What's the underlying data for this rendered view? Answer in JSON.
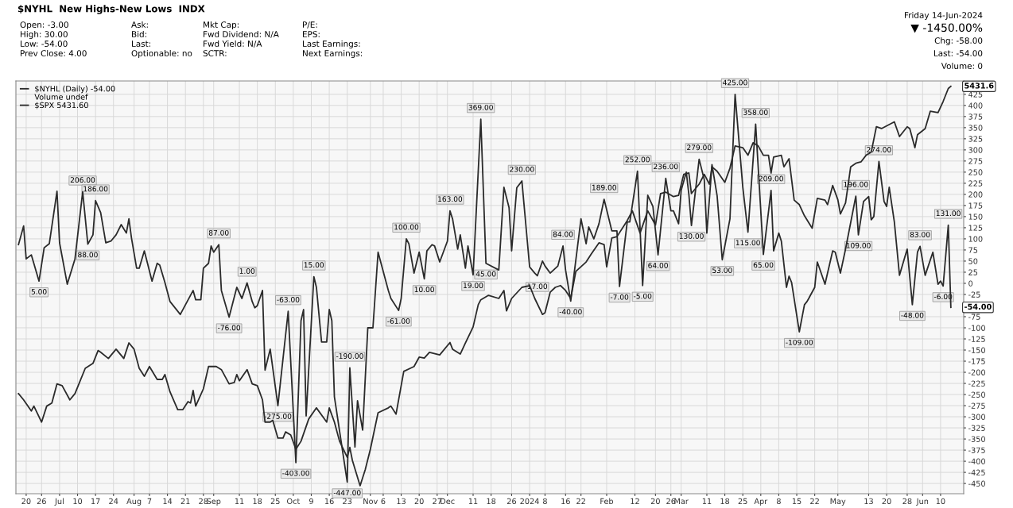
{
  "chart_data": {
    "type": "line",
    "title": "$NYHL  New Highs-New Lows  INDX",
    "annotations": [
      "Open: -3.00",
      "High: 30.00",
      "Low: -54.00",
      "Prev Close: 4.00",
      "Ask:",
      "Bid:",
      "Last:",
      "Optionable: no",
      "Mkt Cap:",
      "Fwd Dividend: N/A",
      "Fwd Yield: N/A",
      "SCTR:",
      "P/E:",
      "EPS:",
      "Last Earnings:",
      "Next Earnings:",
      "Friday 14-Jun-2024",
      "▼ -1450.00%",
      "Chg: -58.00",
      "Last: -54.00",
      "Volume: 0",
      "Volume undef",
      {
        "text": "-54.00",
        "x": "2024-06-14",
        "y": -54
      },
      {
        "text": "5431.6",
        "x": "2024-06-14",
        "y": 443
      }
    ],
    "xlim": [
      "2023-06-16",
      "2024-06-19"
    ],
    "ylim": [
      -473,
      455
    ],
    "xticks": [
      {
        "value": "2023-06-20",
        "label": "20"
      },
      {
        "value": "2023-06-26",
        "label": "26"
      },
      {
        "value": "2023-07-03",
        "label": "Jul"
      },
      {
        "value": "2023-07-10",
        "label": "10"
      },
      {
        "value": "2023-07-17",
        "label": "17"
      },
      {
        "value": "2023-07-24",
        "label": "24"
      },
      {
        "value": "2023-08-01",
        "label": "Aug"
      },
      {
        "value": "2023-08-07",
        "label": "7"
      },
      {
        "value": "2023-08-14",
        "label": "14"
      },
      {
        "value": "2023-08-21",
        "label": "21"
      },
      {
        "value": "2023-08-28",
        "label": "28"
      },
      {
        "value": "2023-09-01",
        "label": "Sep"
      },
      {
        "value": "2023-09-11",
        "label": "11"
      },
      {
        "value": "2023-09-18",
        "label": "18"
      },
      {
        "value": "2023-09-25",
        "label": "25"
      },
      {
        "value": "2023-10-02",
        "label": "Oct"
      },
      {
        "value": "2023-10-09",
        "label": "9"
      },
      {
        "value": "2023-10-16",
        "label": "16"
      },
      {
        "value": "2023-10-23",
        "label": "23"
      },
      {
        "value": "2023-11-01",
        "label": "Nov"
      },
      {
        "value": "2023-11-06",
        "label": "6"
      },
      {
        "value": "2023-11-13",
        "label": "13"
      },
      {
        "value": "2023-11-20",
        "label": "20"
      },
      {
        "value": "2023-11-27",
        "label": "27"
      },
      {
        "value": "2023-12-01",
        "label": "Dec"
      },
      {
        "value": "2023-12-11",
        "label": "11"
      },
      {
        "value": "2023-12-18",
        "label": "18"
      },
      {
        "value": "2023-12-26",
        "label": "26"
      },
      {
        "value": "2024-01-02",
        "label": "2024"
      },
      {
        "value": "2024-01-08",
        "label": "8"
      },
      {
        "value": "2024-01-16",
        "label": "16"
      },
      {
        "value": "2024-01-22",
        "label": "22"
      },
      {
        "value": "2024-02-01",
        "label": "Feb"
      },
      {
        "value": "2024-02-12",
        "label": "12"
      },
      {
        "value": "2024-02-20",
        "label": "20"
      },
      {
        "value": "2024-02-26",
        "label": "26"
      },
      {
        "value": "2024-03-01",
        "label": "Mar"
      },
      {
        "value": "2024-03-11",
        "label": "11"
      },
      {
        "value": "2024-03-18",
        "label": "18"
      },
      {
        "value": "2024-03-25",
        "label": "25"
      },
      {
        "value": "2024-04-01",
        "label": "Apr"
      },
      {
        "value": "2024-04-08",
        "label": "8"
      },
      {
        "value": "2024-04-15",
        "label": "15"
      },
      {
        "value": "2024-04-22",
        "label": "22"
      },
      {
        "value": "2024-05-01",
        "label": "May"
      },
      {
        "value": "2024-05-13",
        "label": "13"
      },
      {
        "value": "2024-05-20",
        "label": "20"
      },
      {
        "value": "2024-05-28",
        "label": "28"
      },
      {
        "value": "2024-06-03",
        "label": "Jun"
      },
      {
        "value": "2024-06-10",
        "label": "10"
      }
    ],
    "yticks": [
      425,
      400,
      375,
      350,
      325,
      300,
      275,
      250,
      225,
      200,
      175,
      150,
      125,
      100,
      75,
      50,
      25,
      0,
      -25,
      -75,
      -100,
      -125,
      -150,
      -175,
      -200,
      -225,
      -250,
      -275,
      -300,
      -325,
      -350,
      -375,
      -400,
      -425,
      -450
    ],
    "grid": true,
    "legend": "top left",
    "series": [
      {
        "name": "$NYHL (Daily) -54.00",
        "color": "#2b2b2b",
        "x": [
          "2023-06-17",
          "2023-06-19",
          "2023-06-20",
          "2023-06-22",
          "2023-06-25",
          "2023-06-27",
          "2023-06-29",
          "2023-07-02",
          "2023-07-03",
          "2023-07-06",
          "2023-07-09",
          "2023-07-12",
          "2023-07-14",
          "2023-07-16",
          "2023-07-17",
          "2023-07-19",
          "2023-07-21",
          "2023-07-23",
          "2023-07-25",
          "2023-07-27",
          "2023-07-29",
          "2023-07-30",
          "2023-07-31",
          "2023-08-02",
          "2023-08-03",
          "2023-08-05",
          "2023-08-08",
          "2023-08-10",
          "2023-08-11",
          "2023-08-13",
          "2023-08-15",
          "2023-08-19",
          "2023-08-24",
          "2023-08-25",
          "2023-08-27",
          "2023-08-28",
          "2023-08-30",
          "2023-08-31",
          "2023-09-01",
          "2023-09-03",
          "2023-09-04",
          "2023-09-07",
          "2023-09-10",
          "2023-09-12",
          "2023-09-14",
          "2023-09-16",
          "2023-09-17",
          "2023-09-18",
          "2023-09-20",
          "2023-09-21",
          "2023-09-23",
          "2023-09-26",
          "2023-09-30",
          "2023-10-03",
          "2023-10-05",
          "2023-10-06",
          "2023-10-07",
          "2023-10-10",
          "2023-10-11",
          "2023-10-13",
          "2023-10-15",
          "2023-10-16",
          "2023-10-17",
          "2023-10-18",
          "2023-10-23",
          "2023-10-24",
          "2023-10-26",
          "2023-10-27",
          "2023-10-29",
          "2023-10-31",
          "2023-11-02",
          "2023-11-04",
          "2023-11-08",
          "2023-11-09",
          "2023-11-12",
          "2023-11-13",
          "2023-11-15",
          "2023-11-16",
          "2023-11-18",
          "2023-11-20",
          "2023-11-22",
          "2023-11-23",
          "2023-11-25",
          "2023-11-26",
          "2023-11-28",
          "2023-12-01",
          "2023-12-02",
          "2023-12-03",
          "2023-12-05",
          "2023-12-06",
          "2023-12-08",
          "2023-12-09",
          "2023-12-11",
          "2023-12-14",
          "2023-12-16",
          "2023-12-21",
          "2023-12-23",
          "2023-12-25",
          "2023-12-26",
          "2023-12-28",
          "2023-12-30",
          "2024-01-02",
          "2024-01-04",
          "2024-01-05",
          "2024-01-07",
          "2024-01-08",
          "2024-01-10",
          "2024-01-13",
          "2024-01-15",
          "2024-01-16",
          "2024-01-18",
          "2024-01-22",
          "2024-01-24",
          "2024-01-25",
          "2024-01-27",
          "2024-01-29",
          "2024-01-31",
          "2024-02-03",
          "2024-02-05",
          "2024-02-06",
          "2024-02-09",
          "2024-02-10",
          "2024-02-13",
          "2024-02-15",
          "2024-02-17",
          "2024-02-19",
          "2024-02-21",
          "2024-02-24",
          "2024-02-26",
          "2024-02-27",
          "2024-02-29",
          "2024-03-01",
          "2024-03-03",
          "2024-03-04",
          "2024-03-05",
          "2024-03-08",
          "2024-03-10",
          "2024-03-11",
          "2024-03-13",
          "2024-03-15",
          "2024-03-17",
          "2024-03-20",
          "2024-03-22",
          "2024-03-25",
          "2024-03-27",
          "2024-03-30",
          "2024-04-02",
          "2024-04-05",
          "2024-04-06",
          "2024-04-08",
          "2024-04-09",
          "2024-04-11",
          "2024-04-12",
          "2024-04-13",
          "2024-04-16",
          "2024-04-18",
          "2024-04-19",
          "2024-04-22",
          "2024-04-23",
          "2024-04-26",
          "2024-04-29",
          "2024-04-30",
          "2024-05-02",
          "2024-05-04",
          "2024-05-08",
          "2024-05-09",
          "2024-05-11",
          "2024-05-13",
          "2024-05-14",
          "2024-05-15",
          "2024-05-17",
          "2024-05-19",
          "2024-05-20",
          "2024-05-21",
          "2024-05-23",
          "2024-05-25",
          "2024-05-28",
          "2024-05-30",
          "2024-06-01",
          "2024-06-02",
          "2024-06-04",
          "2024-06-07",
          "2024-06-09",
          "2024-06-10",
          "2024-06-11",
          "2024-06-13",
          "2024-06-14"
        ],
        "values": [
          87,
          129,
          55,
          64,
          5,
          80,
          89,
          207,
          91,
          -2,
          55,
          206,
          88,
          109,
          186,
          159,
          91,
          95,
          109,
          132,
          113,
          145,
          102,
          34,
          34,
          73,
          5,
          45,
          41,
          2,
          -41,
          -70,
          -16,
          -37,
          -37,
          34,
          45,
          84,
          70,
          87,
          -16,
          -76,
          -9,
          -34,
          1,
          -41,
          -55,
          -50,
          -16,
          -195,
          -148,
          -275,
          -63,
          -403,
          -84,
          -59,
          -298,
          15,
          -9,
          -132,
          -132,
          -59,
          -84,
          -255,
          -447,
          -190,
          -368,
          -264,
          -330,
          -100,
          -100,
          70,
          -16,
          -34,
          -61,
          -34,
          100,
          89,
          23,
          70,
          10,
          73,
          87,
          84,
          48,
          95,
          163,
          145,
          77,
          109,
          34,
          84,
          19,
          369,
          45,
          30,
          216,
          170,
          73,
          215,
          230,
          37,
          23,
          17,
          50,
          39,
          23,
          39,
          84,
          30,
          -40,
          145,
          89,
          127,
          100,
          134,
          189,
          118,
          118,
          -7,
          138,
          138,
          252,
          -5,
          198,
          173,
          64,
          236,
          163,
          163,
          134,
          209,
          250,
          200,
          130,
          279,
          233,
          113,
          267,
          197,
          53,
          145,
          425,
          216,
          115,
          358,
          65,
          209,
          73,
          113,
          95,
          -9,
          16,
          2,
          -109,
          -48,
          -41,
          -9,
          48,
          -2,
          73,
          70,
          23,
          77,
          196,
          109,
          184,
          195,
          143,
          150,
          274,
          184,
          173,
          216,
          138,
          18,
          77,
          -48,
          70,
          83,
          18,
          70,
          -2,
          5,
          -6,
          131,
          -54
        ],
        "value_labels": [
          null,
          null,
          null,
          null,
          "5.00",
          null,
          null,
          null,
          null,
          null,
          null,
          "206.00",
          "88.00",
          null,
          "186.00",
          null,
          null,
          null,
          null,
          null,
          null,
          null,
          null,
          null,
          null,
          null,
          null,
          null,
          null,
          null,
          null,
          null,
          null,
          null,
          null,
          null,
          null,
          null,
          null,
          "87.00",
          null,
          "-76.00",
          null,
          null,
          "1.00",
          null,
          null,
          null,
          null,
          null,
          null,
          "-275.00",
          "-63.00",
          "-403.00",
          null,
          null,
          null,
          "15.00",
          null,
          null,
          null,
          null,
          null,
          null,
          "-447.00",
          "-190.00",
          null,
          null,
          null,
          null,
          null,
          null,
          null,
          null,
          "-61.00",
          null,
          "100.00",
          null,
          null,
          null,
          "10.00",
          null,
          null,
          null,
          null,
          null,
          "163.00",
          null,
          null,
          null,
          null,
          null,
          "19.00",
          "369.00",
          "45.00",
          null,
          null,
          null,
          null,
          null,
          "230.00",
          null,
          null,
          "17.00",
          null,
          null,
          null,
          null,
          "84.00",
          null,
          "-40.00",
          null,
          null,
          null,
          null,
          null,
          "189.00",
          null,
          null,
          "-7.00",
          null,
          null,
          "252.00",
          "-5.00",
          null,
          null,
          "64.00",
          "236.00",
          null,
          null,
          null,
          null,
          null,
          null,
          "130.00",
          "279.00",
          null,
          null,
          null,
          null,
          "53.00",
          null,
          "425.00",
          null,
          "115.00",
          "358.00",
          "65.00",
          "209.00",
          null,
          null,
          null,
          null,
          null,
          null,
          "-109.00",
          null,
          null,
          null,
          null,
          null,
          null,
          null,
          null,
          null,
          "196.00",
          "109.00",
          null,
          null,
          null,
          null,
          "274.00",
          null,
          null,
          null,
          null,
          null,
          null,
          "-48.00",
          null,
          "83.00",
          null,
          null,
          null,
          null,
          "-6.00",
          "131.00",
          null
        ]
      },
      {
        "name": "$SPX 5431.60",
        "color": "#2b2b2b",
        "x": [
          "2023-06-17",
          "2023-06-19",
          "2023-06-22",
          "2023-06-23",
          "2023-06-26",
          "2023-06-28",
          "2023-06-30",
          "2023-07-02",
          "2023-07-04",
          "2023-07-07",
          "2023-07-09",
          "2023-07-13",
          "2023-07-16",
          "2023-07-18",
          "2023-07-19",
          "2023-07-22",
          "2023-07-25",
          "2023-07-28",
          "2023-07-30",
          "2023-08-01",
          "2023-08-03",
          "2023-08-05",
          "2023-08-07",
          "2023-08-10",
          "2023-08-12",
          "2023-08-13",
          "2023-08-15",
          "2023-08-18",
          "2023-08-20",
          "2023-08-22",
          "2023-08-23",
          "2023-08-24",
          "2023-08-25",
          "2023-08-28",
          "2023-08-30",
          "2023-09-02",
          "2023-09-04",
          "2023-09-07",
          "2023-09-09",
          "2023-09-10",
          "2023-09-11",
          "2023-09-14",
          "2023-09-16",
          "2023-09-18",
          "2023-09-20",
          "2023-09-21",
          "2023-09-23",
          "2023-09-24",
          "2023-09-26",
          "2023-09-28",
          "2023-09-29",
          "2023-10-01",
          "2023-10-03",
          "2023-10-05",
          "2023-10-08",
          "2023-10-11",
          "2023-10-15",
          "2023-10-16",
          "2023-10-18",
          "2023-10-20",
          "2023-10-23",
          "2023-10-24",
          "2023-10-25",
          "2023-10-28",
          "2023-10-30",
          "2023-11-01",
          "2023-11-04",
          "2023-11-08",
          "2023-11-09",
          "2023-11-11",
          "2023-11-14",
          "2023-11-18",
          "2023-11-20",
          "2023-11-22",
          "2023-11-24",
          "2023-11-28",
          "2023-12-02",
          "2023-12-03",
          "2023-12-06",
          "2023-12-08",
          "2023-12-11",
          "2023-12-13",
          "2023-12-14",
          "2023-12-17",
          "2023-12-21",
          "2023-12-23",
          "2023-12-24",
          "2023-12-26",
          "2023-12-30",
          "2024-01-02",
          "2024-01-04",
          "2024-01-07",
          "2024-01-08",
          "2024-01-10",
          "2024-01-12",
          "2024-01-14",
          "2024-01-16",
          "2024-01-18",
          "2024-01-20",
          "2024-01-24",
          "2024-01-26",
          "2024-01-29",
          "2024-01-31",
          "2024-02-01",
          "2024-02-03",
          "2024-02-05",
          "2024-02-09",
          "2024-02-11",
          "2024-02-14",
          "2024-02-17",
          "2024-02-20",
          "2024-02-22",
          "2024-02-24",
          "2024-02-27",
          "2024-02-29",
          "2024-03-02",
          "2024-03-04",
          "2024-03-05",
          "2024-03-08",
          "2024-03-10",
          "2024-03-12",
          "2024-03-13",
          "2024-03-15",
          "2024-03-18",
          "2024-03-20",
          "2024-03-22",
          "2024-03-25",
          "2024-03-27",
          "2024-03-29",
          "2024-03-31",
          "2024-04-02",
          "2024-04-04",
          "2024-04-05",
          "2024-04-06",
          "2024-04-09",
          "2024-04-10",
          "2024-04-12",
          "2024-04-14",
          "2024-04-16",
          "2024-04-18",
          "2024-04-21",
          "2024-04-23",
          "2024-04-26",
          "2024-04-27",
          "2024-04-29",
          "2024-05-01",
          "2024-05-02",
          "2024-05-04",
          "2024-05-06",
          "2024-05-08",
          "2024-05-10",
          "2024-05-12",
          "2024-05-14",
          "2024-05-16",
          "2024-05-18",
          "2024-05-23",
          "2024-05-25",
          "2024-05-28",
          "2024-05-29",
          "2024-05-31",
          "2024-06-01",
          "2024-06-04",
          "2024-06-06",
          "2024-06-09",
          "2024-06-11",
          "2024-06-13",
          "2024-06-14"
        ],
        "values": [
          -248,
          -262,
          -287,
          -276,
          -312,
          -276,
          -269,
          -226,
          -230,
          -262,
          -248,
          -191,
          -180,
          -151,
          -155,
          -169,
          -148,
          -169,
          -134,
          -148,
          -191,
          -209,
          -187,
          -216,
          -216,
          -205,
          -244,
          -284,
          -284,
          -266,
          -269,
          -241,
          -276,
          -237,
          -187,
          -187,
          -194,
          -226,
          -223,
          -205,
          -219,
          -194,
          -226,
          -230,
          -262,
          -312,
          -312,
          -308,
          -348,
          -348,
          -334,
          -341,
          -373,
          -355,
          -305,
          -280,
          -312,
          -280,
          -312,
          -355,
          -391,
          -369,
          -398,
          -455,
          -419,
          -373,
          -291,
          -280,
          -276,
          -294,
          -198,
          -187,
          -166,
          -168,
          -155,
          -161,
          -133,
          -148,
          -159,
          -134,
          -98,
          -48,
          -37,
          -27,
          -34,
          -16,
          -62,
          -34,
          -9,
          -5,
          -34,
          -70,
          -66,
          -20,
          -9,
          -5,
          -16,
          -34,
          27,
          48,
          66,
          91,
          87,
          37,
          102,
          105,
          141,
          163,
          113,
          163,
          131,
          202,
          205,
          195,
          198,
          245,
          248,
          202,
          223,
          245,
          223,
          262,
          252,
          227,
          259,
          309,
          305,
          288,
          316,
          309,
          288,
          288,
          248,
          284,
          288,
          262,
          280,
          187,
          177,
          152,
          124,
          191,
          187,
          177,
          220,
          188,
          156,
          181,
          262,
          270,
          273,
          288,
          295,
          352,
          348,
          363,
          330,
          352,
          348,
          305,
          334,
          348,
          387,
          384,
          409,
          438,
          443
        ]
      }
    ]
  }
}
